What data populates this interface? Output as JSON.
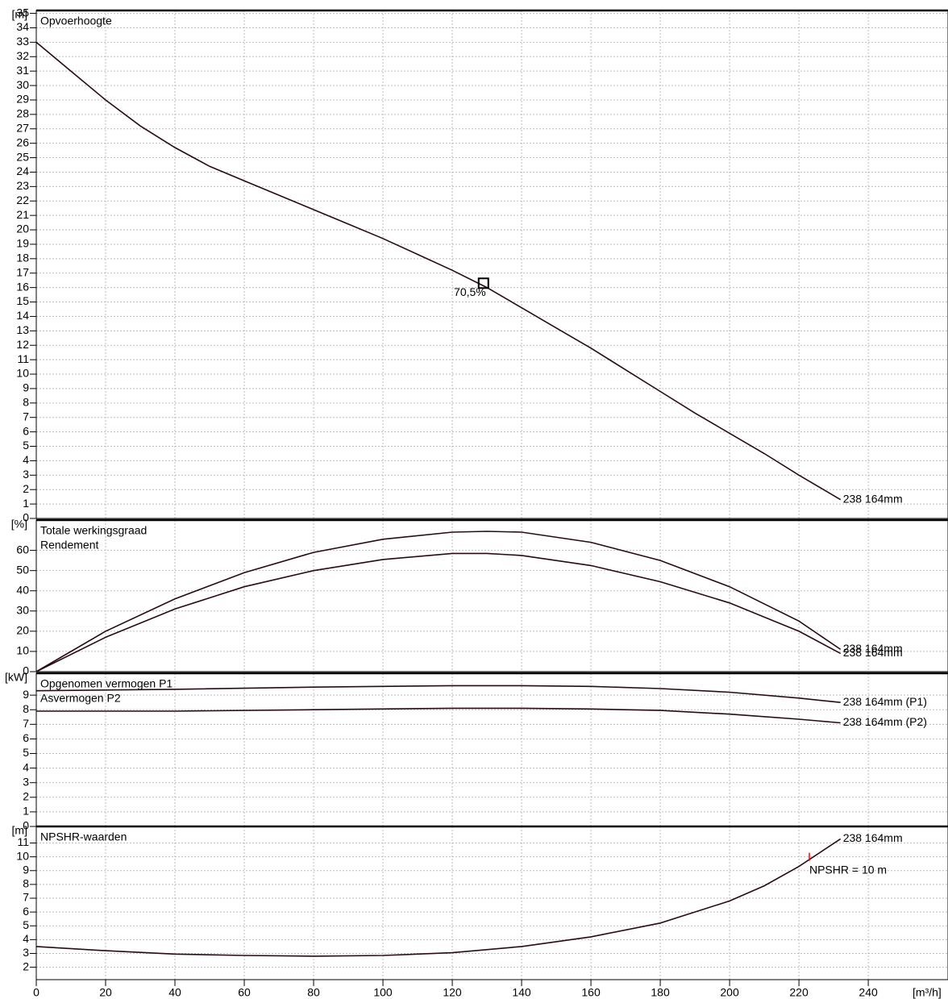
{
  "chart_data": [
    {
      "type": "line",
      "title": "Opvoerhoogte",
      "y_label": "[m]",
      "xlim": [
        0,
        263
      ],
      "xticks": [
        0,
        20,
        40,
        60,
        80,
        100,
        120,
        140,
        160,
        180,
        200,
        220,
        240
      ],
      "ylim": [
        0,
        35.2
      ],
      "yticks": [
        0,
        1,
        2,
        3,
        4,
        5,
        6,
        7,
        8,
        9,
        10,
        11,
        12,
        13,
        14,
        15,
        16,
        17,
        18,
        19,
        20,
        21,
        22,
        23,
        24,
        25,
        26,
        27,
        28,
        29,
        30,
        31,
        32,
        33,
        34,
        35
      ],
      "grid": true,
      "x": [
        0,
        10,
        20,
        30,
        40,
        50,
        60,
        70,
        80,
        90,
        100,
        110,
        120,
        130,
        140,
        150,
        160,
        170,
        180,
        190,
        200,
        210,
        220,
        232
      ],
      "series": [
        {
          "name": "238 164mm",
          "color": "#2a0a14",
          "values": [
            33,
            31,
            29,
            27.2,
            25.7,
            24.4,
            23.4,
            22.4,
            21.4,
            20.4,
            19.4,
            18.3,
            17.2,
            16,
            14.6,
            13.2,
            11.8,
            10.3,
            8.8,
            7.3,
            5.9,
            4.5,
            3,
            1.3
          ]
        }
      ],
      "marker": {
        "x": 129,
        "y": 16.3,
        "label": "70,5%",
        "color": "#000000"
      }
    },
    {
      "type": "line",
      "title": "Totale werkingsgraad",
      "subtitle": "Rendement",
      "y_label": "[%]",
      "xlim": [
        0,
        263
      ],
      "xticks": [
        0,
        20,
        40,
        60,
        80,
        100,
        120,
        140,
        160,
        180,
        200,
        220,
        240
      ],
      "ylim": [
        0,
        75
      ],
      "yticks": [
        0,
        10,
        20,
        30,
        40,
        50,
        60
      ],
      "grid": true,
      "x": [
        0,
        20,
        40,
        60,
        80,
        100,
        120,
        130,
        140,
        160,
        180,
        200,
        220,
        232
      ],
      "series": [
        {
          "name": "238 164mm",
          "color": "#2a0a14",
          "values": [
            0,
            20,
            36,
            49,
            59,
            65.5,
            69,
            69.4,
            69,
            64,
            55,
            42,
            25,
            11
          ]
        },
        {
          "name": "238 164mm",
          "color": "#2a0a14",
          "values": [
            0,
            17,
            31,
            42,
            50,
            55.5,
            58.5,
            58.5,
            57.5,
            52.5,
            44.5,
            34,
            20,
            9
          ]
        }
      ]
    },
    {
      "type": "line",
      "title": "Opgenomen vermogen P1",
      "subtitle": "Asvermogen P2",
      "y_label": "[kW]",
      "xlim": [
        0,
        263
      ],
      "xticks": [
        0,
        20,
        40,
        60,
        80,
        100,
        120,
        140,
        160,
        180,
        200,
        220,
        240
      ],
      "ylim": [
        0,
        10.5
      ],
      "yticks": [
        0,
        1,
        2,
        3,
        4,
        5,
        6,
        7,
        8,
        9
      ],
      "grid": true,
      "x": [
        0,
        40,
        80,
        120,
        140,
        160,
        180,
        200,
        220,
        232
      ],
      "series": [
        {
          "name": "238 164mm (P1)",
          "color": "#2a0a14",
          "values": [
            9.3,
            9.4,
            9.55,
            9.65,
            9.65,
            9.6,
            9.45,
            9.2,
            8.8,
            8.5
          ]
        },
        {
          "name": "238 164mm (P2)",
          "color": "#2a0a14",
          "values": [
            7.9,
            7.9,
            8.0,
            8.1,
            8.1,
            8.05,
            7.95,
            7.7,
            7.35,
            7.1
          ]
        }
      ]
    },
    {
      "type": "line",
      "title": "NPSHR-waarden",
      "y_label": "[m]",
      "x_label": "[m³/h]",
      "xlim": [
        0,
        263
      ],
      "xticks": [
        0,
        20,
        40,
        60,
        80,
        100,
        120,
        140,
        160,
        180,
        200,
        220,
        240
      ],
      "ylim": [
        1.1,
        12.2
      ],
      "yticks": [
        2,
        3,
        4,
        5,
        6,
        7,
        8,
        9,
        10,
        11
      ],
      "grid": true,
      "x": [
        0,
        20,
        40,
        60,
        80,
        100,
        120,
        140,
        160,
        180,
        200,
        210,
        220,
        232
      ],
      "series": [
        {
          "name": "238 164mm",
          "color": "#2a0a14",
          "values": [
            3.5,
            3.2,
            2.95,
            2.85,
            2.8,
            2.85,
            3.05,
            3.5,
            4.2,
            5.2,
            6.8,
            7.9,
            9.3,
            11.3
          ]
        }
      ],
      "marker": {
        "x": 223,
        "y": 10,
        "label": "NPSHR = 10 m",
        "color": "#ff0000"
      }
    }
  ]
}
